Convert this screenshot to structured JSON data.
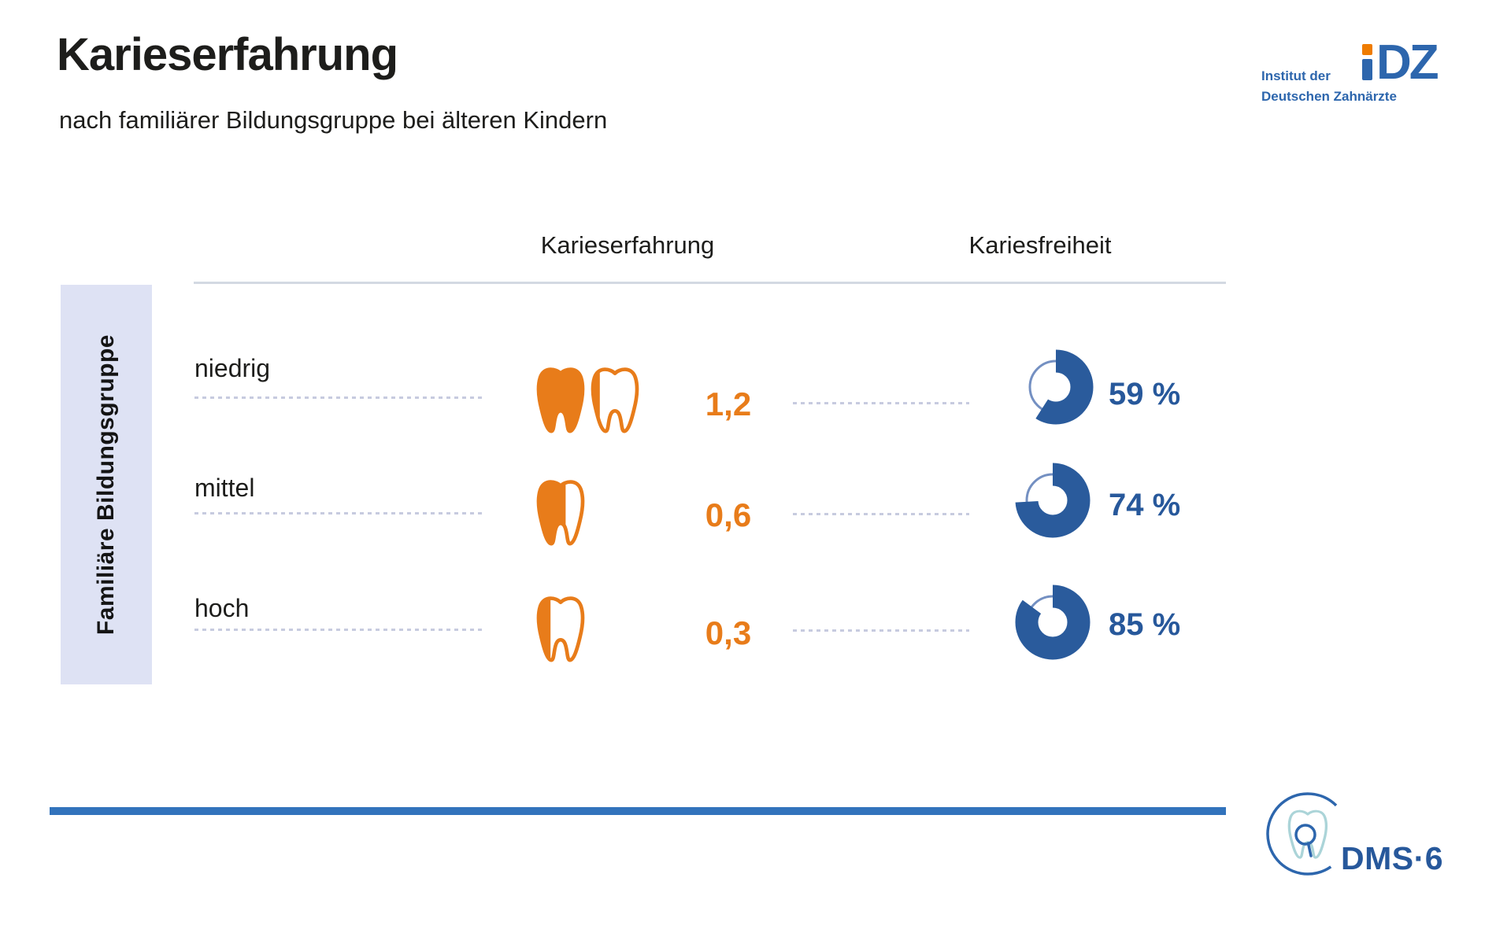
{
  "header": {
    "title": "Karieserfahrung",
    "subtitle": "nach familiärer Bildungsgruppe bei älteren Kindern"
  },
  "idz_logo": {
    "line1": "Institut der",
    "line2": "Deutschen Zahnärzte",
    "mark": "DZ"
  },
  "chart_data": {
    "type": "table",
    "title": "Karieserfahrung nach familiärer Bildungsgruppe bei älteren Kindern",
    "row_group_label": "Familiäre Bildungsgruppe",
    "columns": [
      "Karieserfahrung",
      "Kariesfreiheit"
    ],
    "categories": [
      "niedrig",
      "mittel",
      "hoch"
    ],
    "rows": [
      {
        "label": "niedrig",
        "karieserfahrung": 1.2,
        "karieserfahrung_display": "1,2",
        "teeth_fills": [
          1,
          0.2
        ],
        "kariesfreiheit_pct": 59,
        "kariesfreiheit_display": "59 %"
      },
      {
        "label": "mittel",
        "karieserfahrung": 0.6,
        "karieserfahrung_display": "0,6",
        "teeth_fills": [
          0.6
        ],
        "kariesfreiheit_pct": 74,
        "kariesfreiheit_display": "74 %"
      },
      {
        "label": "hoch",
        "karieserfahrung": 0.3,
        "karieserfahrung_display": "0,3",
        "teeth_fills": [
          0.3
        ],
        "kariesfreiheit_pct": 85,
        "kariesfreiheit_display": "85 %"
      }
    ],
    "legend_position": "none",
    "grid": false
  },
  "icons": {
    "tooth": "tooth-icon",
    "donut": "donut-chart-icon",
    "magnifier_tooth": "tooth-magnifier-icon"
  },
  "footer": {
    "dms_label": "DMS·6"
  },
  "colors": {
    "orange": "#e87c1a",
    "blue": "#2a5b9c",
    "ring_light": "#7490c2",
    "bar_blue": "#3273bc",
    "sidebar_bg": "#dee2f4",
    "dash": "#c7cbdf",
    "idz_blue": "#2d66ad",
    "idz_orange": "#ef7c00",
    "teal": "#abd4d8"
  }
}
